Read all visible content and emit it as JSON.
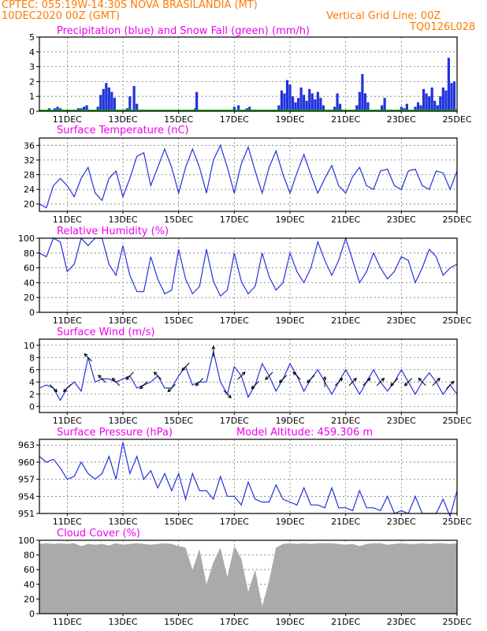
{
  "header": {
    "line1": "CPTEC:   055:19W-14:30S   NOVA BRASILANDIA (MT)",
    "line2": "10DEC2020 00Z (GMT)",
    "grid_note": "Vertical Grid Line: 00Z",
    "code": "TQ0126L028"
  },
  "colors": {
    "header": "#ff7a00",
    "title": "#ee00ee",
    "line": "#2233dd",
    "precip": "#2233dd",
    "snow": "#00aa00",
    "wind_arrow": "#000000",
    "cloud": "#aaaaaa",
    "grid": "#777777"
  },
  "x_ticks": [
    "11DEC",
    "13DEC",
    "15DEC",
    "17DEC",
    "19DEC",
    "21DEC",
    "23DEC",
    "25DEC"
  ],
  "chart_data": [
    {
      "type": "bar",
      "title": "Precipitation (blue) and Snow Fall (green) (mm/h)",
      "x_range": [
        0,
        15
      ],
      "ylim": [
        0,
        5
      ],
      "y_ticks": [
        0,
        1,
        2,
        3,
        4,
        5
      ],
      "grid": true,
      "series": [
        {
          "name": "Precipitation",
          "x": [
            0.35,
            0.45,
            0.55,
            0.65,
            0.75,
            0.9,
            1.4,
            1.5,
            1.6,
            1.7,
            1.8,
            2.1,
            2.2,
            2.3,
            2.4,
            2.5,
            2.6,
            2.7,
            3.15,
            3.25,
            3.4,
            3.5,
            5.6,
            5.65,
            7.0,
            7.15,
            7.45,
            7.55,
            8.6,
            8.7,
            8.8,
            8.9,
            9.0,
            9.1,
            9.2,
            9.3,
            9.4,
            9.5,
            9.6,
            9.7,
            9.8,
            9.9,
            10.0,
            10.1,
            10.2,
            10.6,
            10.7,
            10.8,
            11.4,
            11.5,
            11.6,
            11.7,
            11.8,
            12.3,
            12.4,
            13.0,
            13.1,
            13.2,
            13.5,
            13.6,
            13.7,
            13.8,
            13.9,
            14.0,
            14.1,
            14.2,
            14.3,
            14.4,
            14.5,
            14.6,
            14.7,
            14.8,
            14.9
          ],
          "values": [
            0.2,
            0.1,
            0.2,
            0.3,
            0.2,
            0.1,
            0.2,
            0.2,
            0.3,
            0.4,
            0.1,
            0.3,
            1.1,
            1.5,
            1.9,
            1.6,
            1.3,
            0.9,
            0.2,
            1.0,
            1.7,
            0.5,
            0.2,
            1.3,
            0.3,
            0.4,
            0.2,
            0.3,
            0.4,
            1.4,
            1.2,
            2.1,
            1.8,
            1.0,
            0.6,
            0.9,
            1.6,
            1.1,
            0.7,
            1.5,
            1.2,
            0.8,
            1.3,
            0.9,
            0.4,
            0.3,
            1.2,
            0.5,
            0.4,
            1.3,
            2.5,
            1.2,
            0.6,
            0.4,
            0.9,
            0.3,
            0.2,
            0.5,
            0.3,
            0.6,
            0.4,
            1.5,
            1.2,
            1.0,
            1.6,
            0.7,
            0.4,
            1.0,
            1.6,
            1.4,
            3.6,
            1.9,
            2.0
          ]
        },
        {
          "name": "Snow Fall",
          "x": [
            0,
            15
          ],
          "values": [
            0.05,
            0.05
          ]
        }
      ]
    },
    {
      "type": "line",
      "title": "Surface Temperature (nC)",
      "x_range": [
        0,
        15
      ],
      "ylim": [
        18,
        38
      ],
      "y_ticks": [
        20,
        24,
        28,
        32,
        36
      ],
      "grid": true,
      "x": [
        0,
        0.25,
        0.5,
        0.75,
        1.0,
        1.25,
        1.5,
        1.75,
        2.0,
        2.25,
        2.5,
        2.75,
        3.0,
        3.25,
        3.5,
        3.75,
        4.0,
        4.25,
        4.5,
        4.75,
        5.0,
        5.25,
        5.5,
        5.75,
        6.0,
        6.25,
        6.5,
        6.75,
        7.0,
        7.25,
        7.5,
        7.75,
        8.0,
        8.25,
        8.5,
        8.75,
        9.0,
        9.25,
        9.5,
        9.75,
        10.0,
        10.25,
        10.5,
        10.75,
        11.0,
        11.25,
        11.5,
        11.75,
        12.0,
        12.25,
        12.5,
        12.75,
        13.0,
        13.25,
        13.5,
        13.75,
        14.0,
        14.25,
        14.5,
        14.75,
        15.0
      ],
      "values": [
        20.0,
        19.0,
        25.0,
        27.0,
        25.0,
        22.0,
        27.0,
        30.0,
        23.0,
        21.0,
        27.0,
        29.0,
        22.0,
        27.0,
        33.0,
        34.0,
        25.0,
        30.0,
        35.0,
        30.0,
        23.0,
        30.0,
        35.0,
        30.0,
        23.0,
        32.0,
        36.0,
        30.0,
        23.0,
        31.0,
        35.5,
        29.0,
        23.0,
        30.0,
        34.5,
        28.0,
        23.0,
        28.5,
        33.5,
        28.0,
        23.0,
        27.0,
        30.5,
        25.0,
        23.0,
        27.5,
        30.0,
        25.0,
        24.0,
        29.0,
        29.5,
        25.0,
        24.0,
        29.0,
        29.5,
        25.0,
        24.0,
        29.0,
        28.5,
        24.0,
        29.0
      ]
    },
    {
      "type": "line",
      "title": "Relative Humidity (%)",
      "x_range": [
        0,
        15
      ],
      "ylim": [
        0,
        100
      ],
      "y_ticks": [
        0,
        20,
        40,
        60,
        80,
        100
      ],
      "grid": true,
      "x": [
        0,
        0.25,
        0.5,
        0.75,
        1.0,
        1.25,
        1.5,
        1.75,
        2.0,
        2.25,
        2.5,
        2.75,
        3.0,
        3.25,
        3.5,
        3.75,
        4.0,
        4.25,
        4.5,
        4.75,
        5.0,
        5.25,
        5.5,
        5.75,
        6.0,
        6.25,
        6.5,
        6.75,
        7.0,
        7.25,
        7.5,
        7.75,
        8.0,
        8.25,
        8.5,
        8.75,
        9.0,
        9.25,
        9.5,
        9.75,
        10.0,
        10.25,
        10.5,
        10.75,
        11.0,
        11.25,
        11.5,
        11.75,
        12.0,
        12.25,
        12.5,
        12.75,
        13.0,
        13.25,
        13.5,
        13.75,
        14.0,
        14.25,
        14.5,
        14.75,
        15.0
      ],
      "values": [
        80.0,
        75.0,
        100.0,
        95.0,
        55.0,
        65.0,
        100.0,
        90.0,
        100.0,
        100.0,
        65.0,
        50.0,
        90.0,
        50.0,
        28.0,
        28.0,
        75.0,
        45.0,
        25.0,
        30.0,
        85.0,
        45.0,
        25.0,
        35.0,
        85.0,
        42.0,
        22.0,
        30.0,
        80.0,
        42.0,
        25.0,
        35.0,
        80.0,
        48.0,
        30.0,
        40.0,
        80.0,
        55.0,
        40.0,
        60.0,
        95.0,
        70.0,
        50.0,
        70.0,
        100.0,
        70.0,
        40.0,
        55.0,
        80.0,
        60.0,
        45.0,
        55.0,
        75.0,
        70.0,
        40.0,
        60.0,
        85.0,
        75.0,
        50.0,
        60.0,
        65.0
      ]
    },
    {
      "type": "line",
      "title": "Surface Wind (m/s)",
      "x_range": [
        0,
        15
      ],
      "ylim": [
        -1,
        11
      ],
      "y_ticks": [
        0,
        2,
        4,
        6,
        8,
        10
      ],
      "grid": true,
      "x": [
        0,
        0.25,
        0.5,
        0.75,
        1.0,
        1.25,
        1.5,
        1.75,
        2.0,
        2.25,
        2.5,
        2.75,
        3.0,
        3.25,
        3.5,
        3.75,
        4.0,
        4.25,
        4.5,
        4.75,
        5.0,
        5.25,
        5.5,
        5.75,
        6.0,
        6.25,
        6.5,
        6.75,
        7.0,
        7.25,
        7.5,
        7.75,
        8.0,
        8.25,
        8.5,
        8.75,
        9.0,
        9.25,
        9.5,
        9.75,
        10.0,
        10.25,
        10.5,
        10.75,
        11.0,
        11.25,
        11.5,
        11.75,
        12.0,
        12.25,
        12.5,
        12.75,
        13.0,
        13.25,
        13.5,
        13.75,
        14.0,
        14.25,
        14.5,
        14.75,
        15.0
      ],
      "values": [
        3.0,
        3.5,
        3.0,
        1.0,
        3.0,
        4.0,
        2.5,
        8.0,
        4.0,
        4.5,
        4.5,
        4.0,
        4.5,
        5.0,
        3.0,
        3.5,
        4.0,
        5.0,
        3.0,
        3.0,
        5.0,
        6.5,
        3.5,
        4.0,
        4.0,
        9.0,
        4.0,
        2.0,
        6.5,
        5.0,
        1.5,
        3.5,
        7.0,
        5.0,
        2.5,
        4.5,
        7.0,
        5.0,
        2.5,
        4.5,
        6.0,
        4.0,
        2.0,
        4.0,
        6.0,
        4.0,
        2.0,
        4.0,
        6.0,
        4.0,
        2.5,
        4.0,
        6.0,
        4.0,
        2.0,
        4.0,
        5.5,
        4.0,
        2.0,
        3.5,
        2.0
      ],
      "arrows": {
        "x": [
          0.5,
          1.0,
          1.75,
          2.25,
          2.75,
          3.25,
          3.75,
          4.25,
          4.75,
          5.25,
          5.75,
          6.25,
          6.75,
          7.25,
          7.75,
          8.25,
          8.75,
          9.25,
          9.75,
          10.25,
          10.75,
          11.25,
          11.75,
          12.25,
          12.75,
          13.25,
          13.75,
          14.25,
          14.75
        ],
        "u": [
          1,
          -1,
          -1,
          -1,
          -1,
          -1,
          -1,
          -1,
          -1,
          -1,
          -1,
          0,
          1,
          1,
          -1,
          -1,
          -1,
          -1,
          -1,
          0,
          1,
          1,
          1,
          1,
          -1,
          -1,
          -1,
          1,
          1
        ],
        "v": [
          -1,
          -1,
          1,
          1,
          1,
          -1,
          -1,
          1,
          -1,
          -1,
          -1,
          1,
          -1,
          1,
          -1,
          -1,
          -1,
          1,
          -1,
          1,
          1,
          1,
          1,
          1,
          -1,
          -1,
          1,
          1,
          1
        ]
      }
    },
    {
      "type": "line",
      "title": "Surface Pressure (hPa)",
      "annotation": "Model Altitude: 459.306 m",
      "x_range": [
        0,
        15
      ],
      "ylim": [
        951,
        964
      ],
      "y_ticks": [
        951,
        954,
        957,
        960,
        963
      ],
      "grid": true,
      "x": [
        0,
        0.25,
        0.5,
        0.75,
        1.0,
        1.25,
        1.5,
        1.75,
        2.0,
        2.25,
        2.5,
        2.75,
        3.0,
        3.25,
        3.5,
        3.75,
        4.0,
        4.25,
        4.5,
        4.75,
        5.0,
        5.25,
        5.5,
        5.75,
        6.0,
        6.25,
        6.5,
        6.75,
        7.0,
        7.25,
        7.5,
        7.75,
        8.0,
        8.25,
        8.5,
        8.75,
        9.0,
        9.25,
        9.5,
        9.75,
        10.0,
        10.25,
        10.5,
        10.75,
        11.0,
        11.25,
        11.5,
        11.75,
        12.0,
        12.25,
        12.5,
        12.75,
        13.0,
        13.25,
        13.5,
        13.75,
        14.0,
        14.25,
        14.5,
        14.75,
        15.0
      ],
      "values": [
        961.0,
        960.0,
        960.5,
        959.0,
        957.0,
        957.5,
        960.0,
        958.0,
        957.0,
        958.0,
        961.0,
        957.0,
        963.5,
        958.0,
        961.0,
        957.0,
        958.5,
        955.5,
        958.0,
        955.0,
        958.0,
        953.5,
        958.0,
        955.0,
        955.0,
        953.5,
        957.5,
        954.0,
        954.0,
        952.5,
        956.5,
        953.5,
        953.0,
        953.0,
        956.0,
        953.5,
        953.0,
        952.5,
        955.5,
        952.5,
        952.5,
        952.0,
        955.5,
        952.0,
        952.0,
        951.5,
        955.0,
        952.0,
        952.0,
        951.5,
        954.0,
        951.0,
        951.5,
        951.0,
        954.0,
        951.0,
        951.0,
        951.0,
        953.5,
        950.5,
        955.0
      ]
    },
    {
      "type": "area",
      "title": "Cloud Cover (%)",
      "x_range": [
        0,
        15
      ],
      "ylim": [
        0,
        100
      ],
      "y_ticks": [
        0,
        20,
        40,
        60,
        80,
        100
      ],
      "grid": true,
      "x": [
        0,
        0.25,
        0.5,
        0.75,
        1.0,
        1.25,
        1.5,
        1.75,
        2.0,
        2.25,
        2.5,
        2.75,
        3.0,
        3.25,
        3.5,
        3.75,
        4.0,
        4.25,
        4.5,
        4.75,
        5.0,
        5.25,
        5.5,
        5.75,
        6.0,
        6.25,
        6.5,
        6.75,
        7.0,
        7.25,
        7.5,
        7.75,
        8.0,
        8.25,
        8.5,
        8.75,
        9.0,
        9.25,
        9.5,
        9.75,
        10.0,
        10.25,
        10.5,
        10.75,
        11.0,
        11.25,
        11.5,
        11.75,
        12.0,
        12.25,
        12.5,
        12.75,
        13.0,
        13.25,
        13.5,
        13.75,
        14.0,
        14.25,
        14.5,
        14.75,
        15.0
      ],
      "values": [
        95,
        96,
        95,
        96,
        95,
        96,
        92,
        95,
        94,
        95,
        93,
        96,
        94,
        95,
        96,
        95,
        94,
        95,
        96,
        95,
        92,
        90,
        60,
        88,
        40,
        70,
        90,
        50,
        92,
        75,
        30,
        60,
        10,
        45,
        90,
        95,
        96,
        95,
        96,
        95,
        96,
        96,
        96,
        95,
        94,
        95,
        92,
        95,
        96,
        96,
        94,
        95,
        96,
        95,
        95,
        96,
        95,
        96,
        96,
        95,
        96
      ]
    }
  ]
}
